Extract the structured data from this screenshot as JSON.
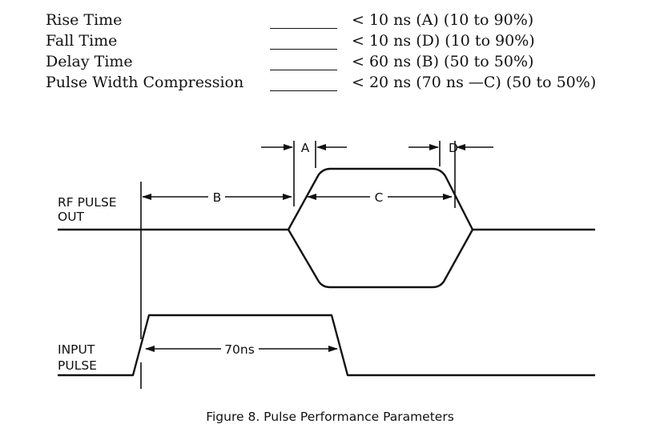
{
  "specs": [
    {
      "label": "Rise Time",
      "value": "< 10 ns (A) (10 to 90%)"
    },
    {
      "label": "Fall Time",
      "value": "< 10 ns (D) (10 to 90%)"
    },
    {
      "label": "Delay Time",
      "value": "< 60 ns (B) (50 to 50%)"
    },
    {
      "label": "Pulse Width Compression",
      "value": "< 20 ns (70 ns —C) (50 to 50%)"
    }
  ],
  "diagram": {
    "rf_pulse_label_line1": "RF PULSE",
    "rf_pulse_label_line2": "OUT",
    "input_pulse_label_line1": "INPUT",
    "input_pulse_label_line2": "PULSE",
    "marker_a": "A",
    "marker_b": "B",
    "marker_c": "C",
    "marker_d": "D",
    "input_width": "70ns"
  },
  "caption": "Figure 8.  Pulse Performance Parameters"
}
